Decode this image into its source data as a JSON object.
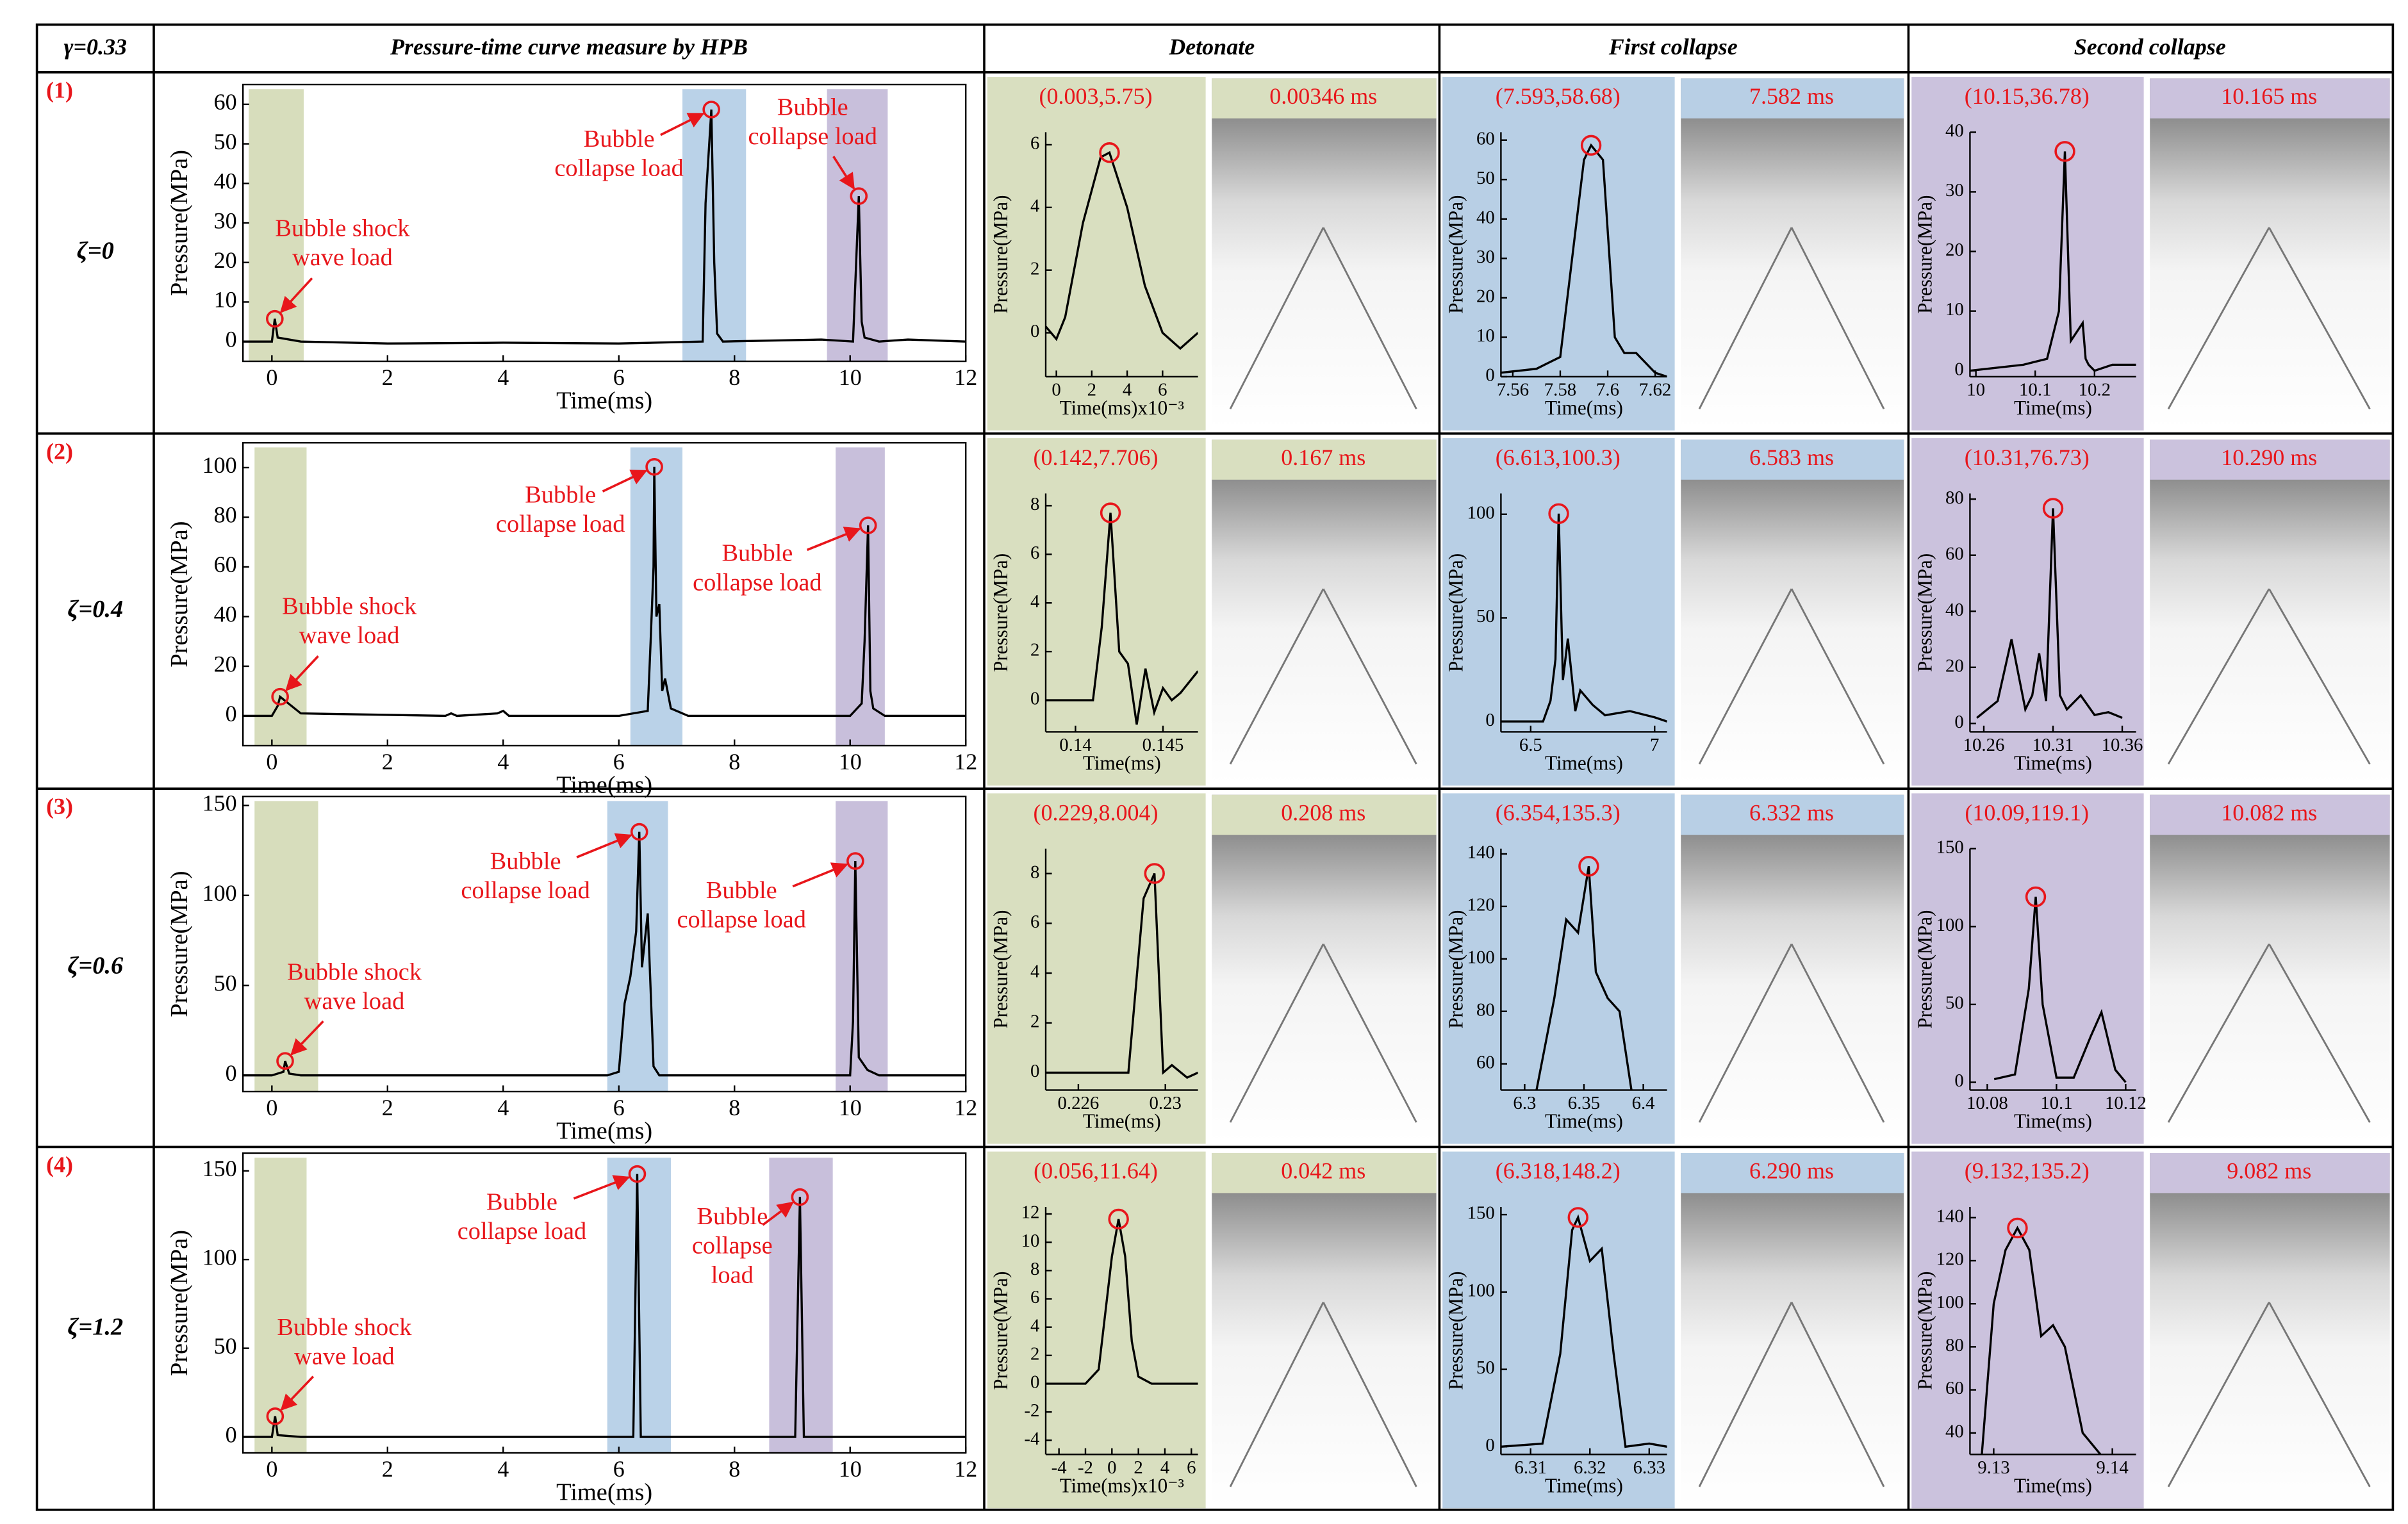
{
  "table": {
    "corner": "γ=0.33",
    "columns": [
      "Pressure-time curve measure by HPB",
      "Detonate",
      "First collapse",
      "Second collapse"
    ],
    "rows": [
      {
        "index": "(1)",
        "zeta": "ζ=0",
        "frames": [
          "0.00346 ms",
          "7.582 ms",
          "10.165 ms"
        ]
      },
      {
        "index": "(2)",
        "zeta": "ζ=0.4",
        "frames": [
          "0.167 ms",
          "6.583 ms",
          "10.290 ms"
        ]
      },
      {
        "index": "(3)",
        "zeta": "ζ=0.6",
        "frames": [
          "0.208 ms",
          "6.332 ms",
          "10.082 ms"
        ]
      },
      {
        "index": "(4)",
        "zeta": "ζ=1.2",
        "frames": [
          "0.042 ms",
          "6.290 ms",
          "9.082 ms"
        ]
      }
    ]
  },
  "chart_data": [
    {
      "type": "line",
      "xlabel": "Time(ms)",
      "ylabel": "Pressure(MPa)",
      "xlim": [
        -0.5,
        12
      ],
      "ylim": [
        -5,
        65
      ],
      "xticks": [
        0,
        2,
        4,
        6,
        8,
        10,
        12
      ],
      "yticks": [
        0,
        10,
        20,
        30,
        40,
        50,
        60
      ],
      "x": [
        -0.5,
        0,
        0.05,
        0.1,
        0.3,
        0.5,
        2,
        4,
        6,
        7.45,
        7.5,
        7.6,
        7.65,
        7.7,
        7.8,
        9.5,
        10.05,
        10.15,
        10.2,
        10.25,
        10.5,
        11,
        12
      ],
      "series": [
        {
          "color": "#000000",
          "values": [
            0,
            0,
            5.75,
            1,
            0.5,
            0,
            -0.5,
            -0.3,
            -0.5,
            0,
            35,
            58.68,
            20,
            2,
            0,
            0.5,
            0,
            36.78,
            5,
            1,
            0,
            0.5,
            0
          ]
        }
      ],
      "bands": [
        {
          "x0": -0.4,
          "x1": 0.55,
          "color": "#c9d2a6"
        },
        {
          "x0": 7.1,
          "x1": 8.2,
          "color": "#a3c3e0"
        },
        {
          "x0": 9.6,
          "x1": 10.65,
          "color": "#b5a9cf"
        }
      ],
      "annotations": [
        [
          "Bubble shock",
          "wave load"
        ],
        [
          "Bubble",
          "collapse load"
        ],
        [
          "Bubble",
          "collapse load"
        ]
      ]
    },
    {
      "type": "line",
      "xlabel": "Time(ms)x10⁻³",
      "ylabel": "Pressure(MPa)",
      "xlim": [
        -0.6,
        8
      ],
      "ylim": [
        -1.4,
        6.4
      ],
      "xticks": [
        0,
        2,
        4,
        6
      ],
      "yticks": [
        0,
        2,
        4,
        6
      ],
      "x": [
        -0.6,
        0,
        0.5,
        1.5,
        2.5,
        3,
        4,
        5,
        6,
        7,
        8
      ],
      "series": [
        {
          "color": "#000000",
          "values": [
            0.2,
            -0.2,
            0.5,
            3.5,
            5.6,
            5.75,
            4,
            1.5,
            0,
            -0.5,
            0
          ]
        }
      ],
      "peak_label": "(0.003,5.75)"
    },
    {
      "type": "line",
      "xlabel": "Time(ms)",
      "ylabel": "Pressure(MPa)",
      "xlim": [
        7.555,
        7.625
      ],
      "ylim": [
        0,
        62
      ],
      "xticks": [
        7.56,
        7.58,
        7.6,
        7.62
      ],
      "yticks": [
        0,
        10,
        20,
        30,
        40,
        50,
        60
      ],
      "x": [
        7.555,
        7.57,
        7.58,
        7.585,
        7.59,
        7.593,
        7.598,
        7.603,
        7.607,
        7.612,
        7.62,
        7.625
      ],
      "series": [
        {
          "color": "#000000",
          "values": [
            1,
            2,
            5,
            30,
            55,
            58.68,
            55,
            10,
            6,
            6,
            1,
            0
          ]
        }
      ],
      "peak_label": "(7.593,58.68)"
    },
    {
      "type": "line",
      "xlabel": "Time(ms)",
      "ylabel": "Pressure(MPa)",
      "xlim": [
        9.99,
        10.27
      ],
      "ylim": [
        -1,
        40
      ],
      "xticks": [
        10,
        10.1,
        10.2
      ],
      "yticks": [
        0,
        10,
        20,
        30,
        40
      ],
      "x": [
        9.99,
        10.08,
        10.12,
        10.14,
        10.15,
        10.16,
        10.18,
        10.185,
        10.19,
        10.2,
        10.23,
        10.27
      ],
      "series": [
        {
          "color": "#000000",
          "values": [
            0,
            1,
            2,
            10,
            36.78,
            5,
            8,
            2,
            1,
            0,
            1,
            1
          ]
        }
      ],
      "peak_label": "(10.15,36.78)"
    },
    {
      "type": "line",
      "xlabel": "Time(ms)",
      "ylabel": "Pressure(MPa)",
      "xlim": [
        -0.5,
        12
      ],
      "ylim": [
        -12,
        110
      ],
      "xticks": [
        0,
        2,
        4,
        6,
        8,
        10,
        12
      ],
      "yticks": [
        0,
        20,
        40,
        60,
        80,
        100
      ],
      "x": [
        -0.5,
        0,
        0.1,
        0.142,
        0.5,
        3,
        3.1,
        3.2,
        3.9,
        4,
        4.1,
        6,
        6.5,
        6.55,
        6.6,
        6.613,
        6.65,
        6.7,
        6.75,
        6.8,
        6.9,
        7.2,
        10,
        10.2,
        10.25,
        10.31,
        10.35,
        10.4,
        10.6,
        12
      ],
      "series": [
        {
          "color": "#000000",
          "values": [
            0,
            0,
            4,
            7.706,
            1,
            0,
            1,
            0,
            1,
            2,
            0,
            0,
            2,
            30,
            60,
            100.3,
            40,
            45,
            10,
            15,
            3,
            0,
            0,
            5,
            30,
            76.73,
            10,
            3,
            0,
            0
          ]
        }
      ],
      "bands": [
        {
          "x0": -0.3,
          "x1": 0.6,
          "color": "#c9d2a6"
        },
        {
          "x0": 6.2,
          "x1": 7.1,
          "color": "#a3c3e0"
        },
        {
          "x0": 9.75,
          "x1": 10.6,
          "color": "#b5a9cf"
        }
      ],
      "annotations": [
        [
          "Bubble shock",
          "wave load"
        ],
        [
          "Bubble",
          "collapse load"
        ],
        [
          "Bubble",
          "collapse load"
        ]
      ]
    },
    {
      "type": "line",
      "xlabel": "Time(ms)",
      "ylabel": "Pressure(MPa)",
      "xlim": [
        0.1383,
        0.147
      ],
      "ylim": [
        -1.3,
        8.5
      ],
      "xticks": [
        0.14,
        0.145
      ],
      "yticks": [
        0,
        2,
        4,
        6,
        8
      ],
      "x": [
        0.1383,
        0.141,
        0.1415,
        0.142,
        0.1425,
        0.143,
        0.1435,
        0.144,
        0.1445,
        0.145,
        0.1455,
        0.146,
        0.147
      ],
      "series": [
        {
          "color": "#000000",
          "values": [
            0,
            0,
            3,
            7.706,
            2,
            1.5,
            -1,
            1.3,
            -0.5,
            0.5,
            0,
            0.3,
            1.2
          ]
        }
      ],
      "peak_label": "(0.142,7.706)"
    },
    {
      "type": "line",
      "xlabel": "Time(ms)",
      "ylabel": "Pressure(MPa)",
      "xlim": [
        6.38,
        7.05
      ],
      "ylim": [
        -5,
        110
      ],
      "xticks": [
        6.5,
        7
      ],
      "yticks": [
        0,
        50,
        100
      ],
      "x": [
        6.38,
        6.55,
        6.58,
        6.6,
        6.613,
        6.63,
        6.65,
        6.68,
        6.7,
        6.75,
        6.8,
        6.9,
        7,
        7.05
      ],
      "series": [
        {
          "color": "#000000",
          "values": [
            0,
            0,
            10,
            30,
            100.3,
            20,
            40,
            5,
            15,
            8,
            3,
            5,
            2,
            0
          ]
        }
      ],
      "peak_label": "(6.613,100.3)"
    },
    {
      "type": "line",
      "xlabel": "Time(ms)",
      "ylabel": "Pressure(MPa)",
      "xlim": [
        10.25,
        10.37
      ],
      "ylim": [
        -3,
        82
      ],
      "xticks": [
        10.26,
        10.31,
        10.36
      ],
      "yticks": [
        0,
        20,
        40,
        60,
        80
      ],
      "x": [
        10.255,
        10.27,
        10.28,
        10.29,
        10.295,
        10.3,
        10.305,
        10.31,
        10.315,
        10.32,
        10.33,
        10.34,
        10.35,
        10.36
      ],
      "series": [
        {
          "color": "#000000",
          "values": [
            2,
            8,
            30,
            5,
            10,
            25,
            8,
            76.73,
            10,
            5,
            10,
            3,
            4,
            2
          ]
        }
      ],
      "peak_label": "(10.31,76.73)"
    },
    {
      "type": "line",
      "xlabel": "Time(ms)",
      "ylabel": "Pressure(MPa)",
      "xlim": [
        -0.5,
        12
      ],
      "ylim": [
        -9,
        155
      ],
      "xticks": [
        0,
        2,
        4,
        6,
        8,
        10,
        12
      ],
      "yticks": [
        0,
        50,
        100,
        150
      ],
      "x": [
        -0.5,
        0,
        0.2,
        0.229,
        0.3,
        0.5,
        5.8,
        6,
        6.1,
        6.2,
        6.3,
        6.354,
        6.4,
        6.5,
        6.6,
        6.7,
        10,
        10.05,
        10.09,
        10.15,
        10.3,
        10.5,
        12
      ],
      "series": [
        {
          "color": "#000000",
          "values": [
            0,
            0,
            2,
            8.004,
            1,
            0,
            0,
            2,
            40,
            55,
            80,
            135.3,
            60,
            90,
            5,
            0,
            0,
            30,
            119.1,
            10,
            3,
            0,
            0
          ]
        }
      ],
      "bands": [
        {
          "x0": -0.3,
          "x1": 0.8,
          "color": "#c9d2a6"
        },
        {
          "x0": 5.8,
          "x1": 6.85,
          "color": "#a3c3e0"
        },
        {
          "x0": 9.75,
          "x1": 10.65,
          "color": "#b5a9cf"
        }
      ],
      "annotations": [
        [
          "Bubble shock",
          "wave load"
        ],
        [
          "Bubble",
          "collapse load"
        ],
        [
          "Bubble",
          "collapse load"
        ]
      ]
    },
    {
      "type": "line",
      "xlabel": "Time(ms)",
      "ylabel": "Pressure(MPa)",
      "xlim": [
        0.2245,
        0.2315
      ],
      "ylim": [
        -0.7,
        9
      ],
      "xticks": [
        0.226,
        0.23
      ],
      "yticks": [
        0,
        2,
        4,
        6,
        8
      ],
      "x": [
        0.2245,
        0.227,
        0.2283,
        0.229,
        0.2295,
        0.2299,
        0.2303,
        0.231,
        0.2315
      ],
      "series": [
        {
          "color": "#000000",
          "values": [
            0,
            0,
            0,
            7,
            8.004,
            0,
            0.3,
            -0.2,
            0
          ]
        }
      ],
      "peak_label": "(0.229,8.004)"
    },
    {
      "type": "line",
      "xlabel": "Time(ms)",
      "ylabel": "Pressure(MPa)",
      "xlim": [
        6.28,
        6.42
      ],
      "ylim": [
        50,
        142
      ],
      "xticks": [
        6.3,
        6.35,
        6.4
      ],
      "yticks": [
        60,
        80,
        100,
        120,
        140
      ],
      "x": [
        6.31,
        6.325,
        6.335,
        6.345,
        6.354,
        6.36,
        6.37,
        6.38,
        6.39
      ],
      "series": [
        {
          "color": "#000000",
          "values": [
            50,
            85,
            115,
            110,
            135.3,
            95,
            85,
            80,
            50
          ]
        }
      ],
      "peak_label": "(6.354,135.3)"
    },
    {
      "type": "line",
      "xlabel": "Time(ms)",
      "ylabel": "Pressure(MPa)",
      "xlim": [
        10.075,
        10.123
      ],
      "ylim": [
        -5,
        150
      ],
      "xticks": [
        10.08,
        10.1,
        10.12
      ],
      "yticks": [
        0,
        50,
        100,
        150
      ],
      "x": [
        10.082,
        10.088,
        10.092,
        10.094,
        10.096,
        10.1,
        10.105,
        10.11,
        10.113,
        10.117,
        10.12
      ],
      "series": [
        {
          "color": "#000000",
          "values": [
            2,
            5,
            60,
            119.1,
            50,
            3,
            3,
            30,
            45,
            8,
            0
          ]
        }
      ],
      "peak_label": "(10.09,119.1)"
    },
    {
      "type": "line",
      "xlabel": "Time(ms)",
      "ylabel": "Pressure(MPa)",
      "xlim": [
        -0.5,
        12
      ],
      "ylim": [
        -9,
        160
      ],
      "xticks": [
        0,
        2,
        4,
        6,
        8,
        10,
        12
      ],
      "yticks": [
        0,
        50,
        100,
        150
      ],
      "x": [
        -0.5,
        0,
        0.056,
        0.1,
        0.5,
        6.25,
        6.318,
        6.38,
        9.05,
        9.132,
        9.2,
        12
      ],
      "series": [
        {
          "color": "#000000",
          "values": [
            0,
            0,
            11.64,
            1,
            0,
            0,
            148.2,
            0,
            0,
            135.2,
            0,
            0
          ]
        }
      ],
      "bands": [
        {
          "x0": -0.3,
          "x1": 0.6,
          "color": "#c9d2a6"
        },
        {
          "x0": 5.8,
          "x1": 6.9,
          "color": "#a3c3e0"
        },
        {
          "x0": 8.6,
          "x1": 9.7,
          "color": "#b5a9cf"
        }
      ],
      "annotations": [
        [
          "Bubble shock",
          "wave load"
        ],
        [
          "Bubble",
          "collapse load"
        ],
        [
          "Bubble",
          "collapse",
          "load"
        ]
      ]
    },
    {
      "type": "line",
      "xlabel": "Time(ms)x10⁻³",
      "ylabel": "Pressure(MPa)",
      "xlim": [
        -5,
        6.5
      ],
      "ylim": [
        -5,
        12.5
      ],
      "xticks": [
        -4,
        -2,
        0,
        2,
        4,
        6
      ],
      "yticks": [
        -4,
        -2,
        0,
        2,
        4,
        6,
        8,
        10,
        12
      ],
      "x": [
        -5,
        -2,
        -1,
        0,
        0.5,
        1,
        1.5,
        2,
        3,
        5,
        6.5
      ],
      "series": [
        {
          "color": "#000000",
          "values": [
            0,
            0,
            1,
            9,
            11.64,
            9,
            3,
            0.5,
            0,
            0,
            0
          ]
        }
      ],
      "peak_label": "(0.056,11.64)"
    },
    {
      "type": "line",
      "xlabel": "Time(ms)",
      "ylabel": "Pressure(MPa)",
      "xlim": [
        6.305,
        6.333
      ],
      "ylim": [
        -5,
        155
      ],
      "xticks": [
        6.31,
        6.32,
        6.33
      ],
      "yticks": [
        0,
        50,
        100,
        150
      ],
      "x": [
        6.305,
        6.312,
        6.315,
        6.317,
        6.318,
        6.32,
        6.322,
        6.324,
        6.326,
        6.33,
        6.333
      ],
      "series": [
        {
          "color": "#000000",
          "values": [
            0,
            2,
            60,
            140,
            148.2,
            120,
            128,
            60,
            0,
            2,
            0
          ]
        }
      ],
      "peak_label": "(6.318,148.2)"
    },
    {
      "type": "line",
      "xlabel": "Time(ms)",
      "ylabel": "Pressure(MPa)",
      "xlim": [
        9.128,
        9.142
      ],
      "ylim": [
        30,
        145
      ],
      "xticks": [
        9.13,
        9.14
      ],
      "yticks": [
        40,
        60,
        80,
        100,
        120,
        140
      ],
      "x": [
        9.129,
        9.13,
        9.131,
        9.132,
        9.133,
        9.134,
        9.135,
        9.136,
        9.1375,
        9.139
      ],
      "series": [
        {
          "color": "#000000",
          "values": [
            30,
            100,
            125,
            135.2,
            125,
            85,
            90,
            80,
            40,
            30
          ]
        }
      ],
      "peak_label": "(9.132,135.2)"
    }
  ]
}
